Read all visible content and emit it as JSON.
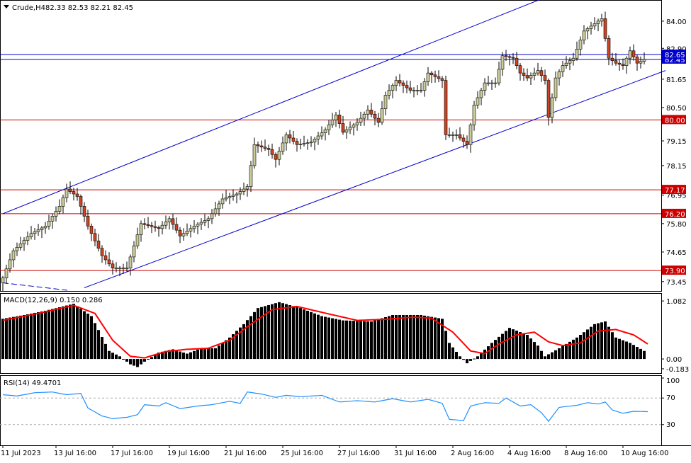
{
  "header": {
    "symbol_label": "Crude,H4",
    "ohlc": "82.33 82.53 82.21 82.45"
  },
  "chart_data": [
    {
      "type": "candlestick",
      "title": "Crude,H4 82.33 82.53 82.21 82.45",
      "ylim": [
        73.1,
        84.8
      ],
      "y_ticks": [
        84.0,
        82.9,
        81.65,
        80.5,
        79.15,
        78.15,
        76.95,
        75.8,
        74.65,
        73.45
      ],
      "x_ticks": [
        "11 Jul 2023",
        "13 Jul 16:00",
        "17 Jul 16:00",
        "19 Jul 16:00",
        "21 Jul 16:00",
        "25 Jul 16:00",
        "27 Jul 16:00",
        "31 Jul 16:00",
        "2 Aug 16:00",
        "4 Aug 16:00",
        "8 Aug 16:00",
        "10 Aug 16:00"
      ],
      "horizontal_levels": [
        {
          "value": 82.45,
          "label": "82.45",
          "color": "#0000cc"
        },
        {
          "value": 82.65,
          "label": "82.65",
          "color": "#0000cc"
        },
        {
          "value": 80.0,
          "label": "80.00",
          "color": "#cc0000"
        },
        {
          "value": 77.17,
          "label": "77.17",
          "color": "#cc0000"
        },
        {
          "value": 76.2,
          "label": "76.20",
          "color": "#cc0000"
        },
        {
          "value": 73.9,
          "label": "73.90",
          "color": "#cc0000"
        }
      ],
      "channel": {
        "upper": {
          "from": [
            0,
            76.2
          ],
          "to": [
            152,
            84.9
          ]
        },
        "lower": {
          "from": [
            23,
            73.2
          ],
          "to": [
            187,
            82.0
          ]
        }
      },
      "colors": {
        "up": "#cccc99",
        "down": "#cc4422",
        "wick": "#000000",
        "channel": "#0000cc"
      },
      "anchors": [
        {
          "i": 0,
          "price": 73.6
        },
        {
          "i": 3,
          "price": 74.7
        },
        {
          "i": 8,
          "price": 75.4
        },
        {
          "i": 12,
          "price": 75.7
        },
        {
          "i": 16,
          "price": 76.5
        },
        {
          "i": 18,
          "price": 77.2
        },
        {
          "i": 21,
          "price": 76.9
        },
        {
          "i": 24,
          "price": 75.7
        },
        {
          "i": 28,
          "price": 74.5
        },
        {
          "i": 31,
          "price": 74.0
        },
        {
          "i": 35,
          "price": 74.0
        },
        {
          "i": 39,
          "price": 75.8
        },
        {
          "i": 44,
          "price": 75.6
        },
        {
          "i": 47,
          "price": 76.0
        },
        {
          "i": 50,
          "price": 75.3
        },
        {
          "i": 54,
          "price": 75.7
        },
        {
          "i": 58,
          "price": 76.0
        },
        {
          "i": 62,
          "price": 76.8
        },
        {
          "i": 66,
          "price": 77.0
        },
        {
          "i": 69,
          "price": 77.3
        },
        {
          "i": 71,
          "price": 79.0
        },
        {
          "i": 75,
          "price": 78.8
        },
        {
          "i": 77,
          "price": 78.4
        },
        {
          "i": 80,
          "price": 79.4
        },
        {
          "i": 83,
          "price": 79.0
        },
        {
          "i": 87,
          "price": 79.1
        },
        {
          "i": 91,
          "price": 79.6
        },
        {
          "i": 94,
          "price": 80.2
        },
        {
          "i": 96,
          "price": 79.5
        },
        {
          "i": 100,
          "price": 79.9
        },
        {
          "i": 103,
          "price": 80.4
        },
        {
          "i": 106,
          "price": 79.9
        },
        {
          "i": 108,
          "price": 81.0
        },
        {
          "i": 111,
          "price": 81.6
        },
        {
          "i": 115,
          "price": 81.2
        },
        {
          "i": 118,
          "price": 81.2
        },
        {
          "i": 120,
          "price": 81.9
        },
        {
          "i": 124,
          "price": 81.6
        },
        {
          "i": 125,
          "price": 79.4
        },
        {
          "i": 128,
          "price": 79.4
        },
        {
          "i": 131,
          "price": 79.0
        },
        {
          "i": 133,
          "price": 80.6
        },
        {
          "i": 136,
          "price": 81.5
        },
        {
          "i": 139,
          "price": 81.5
        },
        {
          "i": 141,
          "price": 82.6
        },
        {
          "i": 144,
          "price": 82.5
        },
        {
          "i": 146,
          "price": 81.9
        },
        {
          "i": 148,
          "price": 81.7
        },
        {
          "i": 151,
          "price": 82.0
        },
        {
          "i": 153,
          "price": 81.6
        },
        {
          "i": 154,
          "price": 80.1
        },
        {
          "i": 156,
          "price": 81.7
        },
        {
          "i": 158,
          "price": 82.2
        },
        {
          "i": 161,
          "price": 82.5
        },
        {
          "i": 164,
          "price": 83.6
        },
        {
          "i": 167,
          "price": 83.9
        },
        {
          "i": 169,
          "price": 84.1
        },
        {
          "i": 171,
          "price": 82.5
        },
        {
          "i": 173,
          "price": 82.3
        },
        {
          "i": 175,
          "price": 82.2
        },
        {
          "i": 177,
          "price": 82.8
        },
        {
          "i": 179,
          "price": 82.3
        },
        {
          "i": 181,
          "price": 82.45
        }
      ]
    },
    {
      "type": "bar",
      "title": "MACD(12,26,9) 0.150 0.286",
      "ylim": [
        -0.25,
        1.15
      ],
      "y_ticks": [
        1.082,
        0.0,
        -0.183
      ],
      "signal_color": "#ff0000",
      "bar_color": "#000000",
      "histogram_anchors": [
        {
          "i": 0,
          "v": 0.75
        },
        {
          "i": 6,
          "v": 0.82
        },
        {
          "i": 12,
          "v": 0.9
        },
        {
          "i": 20,
          "v": 1.03
        },
        {
          "i": 25,
          "v": 0.8
        },
        {
          "i": 30,
          "v": 0.15
        },
        {
          "i": 33,
          "v": 0.05
        },
        {
          "i": 36,
          "v": -0.1
        },
        {
          "i": 38,
          "v": -0.15
        },
        {
          "i": 40,
          "v": -0.05
        },
        {
          "i": 44,
          "v": 0.12
        },
        {
          "i": 48,
          "v": 0.18
        },
        {
          "i": 52,
          "v": 0.1
        },
        {
          "i": 56,
          "v": 0.2
        },
        {
          "i": 60,
          "v": 0.2
        },
        {
          "i": 64,
          "v": 0.4
        },
        {
          "i": 68,
          "v": 0.65
        },
        {
          "i": 72,
          "v": 0.95
        },
        {
          "i": 78,
          "v": 1.06
        },
        {
          "i": 84,
          "v": 0.95
        },
        {
          "i": 90,
          "v": 0.8
        },
        {
          "i": 96,
          "v": 0.72
        },
        {
          "i": 104,
          "v": 0.7
        },
        {
          "i": 110,
          "v": 0.82
        },
        {
          "i": 118,
          "v": 0.82
        },
        {
          "i": 124,
          "v": 0.75
        },
        {
          "i": 126,
          "v": 0.3
        },
        {
          "i": 129,
          "v": 0.05
        },
        {
          "i": 131,
          "v": -0.08
        },
        {
          "i": 134,
          "v": 0.05
        },
        {
          "i": 138,
          "v": 0.3
        },
        {
          "i": 143,
          "v": 0.58
        },
        {
          "i": 148,
          "v": 0.45
        },
        {
          "i": 151,
          "v": 0.25
        },
        {
          "i": 153,
          "v": 0.05
        },
        {
          "i": 157,
          "v": 0.2
        },
        {
          "i": 162,
          "v": 0.4
        },
        {
          "i": 167,
          "v": 0.65
        },
        {
          "i": 170,
          "v": 0.7
        },
        {
          "i": 173,
          "v": 0.4
        },
        {
          "i": 177,
          "v": 0.3
        },
        {
          "i": 181,
          "v": 0.15
        }
      ],
      "signal_anchors": [
        {
          "i": 0,
          "v": 0.72
        },
        {
          "i": 10,
          "v": 0.85
        },
        {
          "i": 20,
          "v": 1.0
        },
        {
          "i": 26,
          "v": 0.85
        },
        {
          "i": 31,
          "v": 0.35
        },
        {
          "i": 36,
          "v": 0.05
        },
        {
          "i": 40,
          "v": 0.02
        },
        {
          "i": 46,
          "v": 0.14
        },
        {
          "i": 52,
          "v": 0.18
        },
        {
          "i": 58,
          "v": 0.2
        },
        {
          "i": 64,
          "v": 0.35
        },
        {
          "i": 70,
          "v": 0.65
        },
        {
          "i": 76,
          "v": 0.92
        },
        {
          "i": 83,
          "v": 0.98
        },
        {
          "i": 92,
          "v": 0.84
        },
        {
          "i": 100,
          "v": 0.72
        },
        {
          "i": 108,
          "v": 0.74
        },
        {
          "i": 116,
          "v": 0.78
        },
        {
          "i": 121,
          "v": 0.76
        },
        {
          "i": 127,
          "v": 0.5
        },
        {
          "i": 132,
          "v": 0.15
        },
        {
          "i": 136,
          "v": 0.1
        },
        {
          "i": 140,
          "v": 0.28
        },
        {
          "i": 145,
          "v": 0.45
        },
        {
          "i": 150,
          "v": 0.5
        },
        {
          "i": 154,
          "v": 0.32
        },
        {
          "i": 158,
          "v": 0.25
        },
        {
          "i": 163,
          "v": 0.3
        },
        {
          "i": 168,
          "v": 0.52
        },
        {
          "i": 173,
          "v": 0.55
        },
        {
          "i": 178,
          "v": 0.45
        },
        {
          "i": 182,
          "v": 0.28
        }
      ]
    },
    {
      "type": "line",
      "title": "RSI(14) 49.4701",
      "ylim": [
        0,
        100
      ],
      "y_ticks": [
        100,
        70,
        30
      ],
      "line_color": "#1e90ff",
      "anchors": [
        {
          "i": 0,
          "v": 75
        },
        {
          "i": 4,
          "v": 73
        },
        {
          "i": 9,
          "v": 78
        },
        {
          "i": 14,
          "v": 79
        },
        {
          "i": 18,
          "v": 75
        },
        {
          "i": 22,
          "v": 77
        },
        {
          "i": 24,
          "v": 55
        },
        {
          "i": 28,
          "v": 43
        },
        {
          "i": 31,
          "v": 39
        },
        {
          "i": 35,
          "v": 41
        },
        {
          "i": 38,
          "v": 45
        },
        {
          "i": 40,
          "v": 60
        },
        {
          "i": 44,
          "v": 58
        },
        {
          "i": 46,
          "v": 63
        },
        {
          "i": 50,
          "v": 54
        },
        {
          "i": 55,
          "v": 58
        },
        {
          "i": 59,
          "v": 60
        },
        {
          "i": 64,
          "v": 65
        },
        {
          "i": 67,
          "v": 62
        },
        {
          "i": 69,
          "v": 79
        },
        {
          "i": 73,
          "v": 76
        },
        {
          "i": 77,
          "v": 71
        },
        {
          "i": 80,
          "v": 74
        },
        {
          "i": 84,
          "v": 72
        },
        {
          "i": 90,
          "v": 74
        },
        {
          "i": 95,
          "v": 64
        },
        {
          "i": 100,
          "v": 66
        },
        {
          "i": 105,
          "v": 64
        },
        {
          "i": 110,
          "v": 69
        },
        {
          "i": 115,
          "v": 64
        },
        {
          "i": 120,
          "v": 68
        },
        {
          "i": 124,
          "v": 62
        },
        {
          "i": 126,
          "v": 38
        },
        {
          "i": 130,
          "v": 36
        },
        {
          "i": 132,
          "v": 58
        },
        {
          "i": 136,
          "v": 63
        },
        {
          "i": 140,
          "v": 62
        },
        {
          "i": 142,
          "v": 70
        },
        {
          "i": 146,
          "v": 58
        },
        {
          "i": 149,
          "v": 60
        },
        {
          "i": 152,
          "v": 48
        },
        {
          "i": 154,
          "v": 35
        },
        {
          "i": 157,
          "v": 56
        },
        {
          "i": 162,
          "v": 59
        },
        {
          "i": 165,
          "v": 63
        },
        {
          "i": 168,
          "v": 61
        },
        {
          "i": 170,
          "v": 64
        },
        {
          "i": 172,
          "v": 52
        },
        {
          "i": 175,
          "v": 47
        },
        {
          "i": 178,
          "v": 50
        },
        {
          "i": 182,
          "v": 49.47
        }
      ]
    }
  ]
}
